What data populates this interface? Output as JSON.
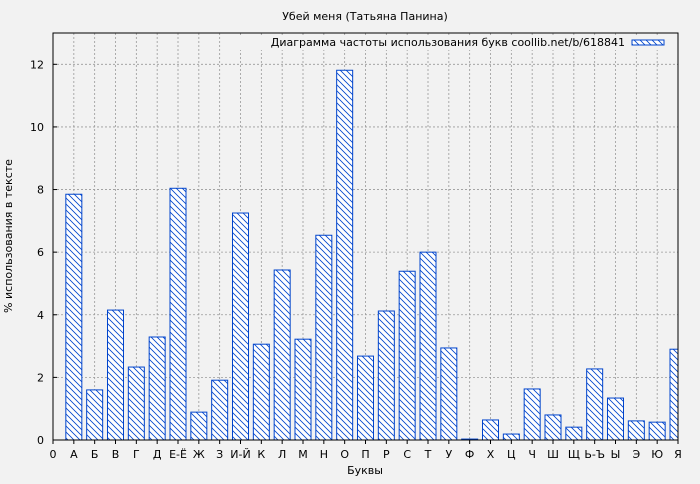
{
  "chart_data": {
    "type": "bar",
    "title": "Убей меня (Татьяна Панина)",
    "xlabel": "Буквы",
    "ylabel": "% использования в тексте",
    "legend": {
      "label": "Диаграмма частоты использования букв coollib.net/b/618841",
      "placement": "top-right"
    },
    "grid": true,
    "ylim": [
      0,
      13
    ],
    "yticks": [
      0,
      2,
      4,
      6,
      8,
      10,
      12
    ],
    "origin_label": "0",
    "categories": [
      "А",
      "Б",
      "В",
      "Г",
      "Д",
      "Е-Ё",
      "Ж",
      "З",
      "И-Й",
      "К",
      "Л",
      "М",
      "Н",
      "О",
      "П",
      "Р",
      "С",
      "Т",
      "У",
      "Ф",
      "Х",
      "Ц",
      "Ч",
      "Ш",
      "Щ",
      "Ь-Ъ",
      "Ы",
      "Э",
      "Ю",
      "Я"
    ],
    "values": [
      7.85,
      1.6,
      4.15,
      2.33,
      3.29,
      8.04,
      0.89,
      1.91,
      7.25,
      3.06,
      5.43,
      3.22,
      6.54,
      11.81,
      2.68,
      4.12,
      5.39,
      6.0,
      2.94,
      0.03,
      0.64,
      0.19,
      1.63,
      0.8,
      0.41,
      2.27,
      1.34,
      0.61,
      0.57,
      2.9
    ],
    "colors": {
      "bar": "#0044cc",
      "background": "#f2f2f2",
      "grid": "#999999"
    }
  }
}
